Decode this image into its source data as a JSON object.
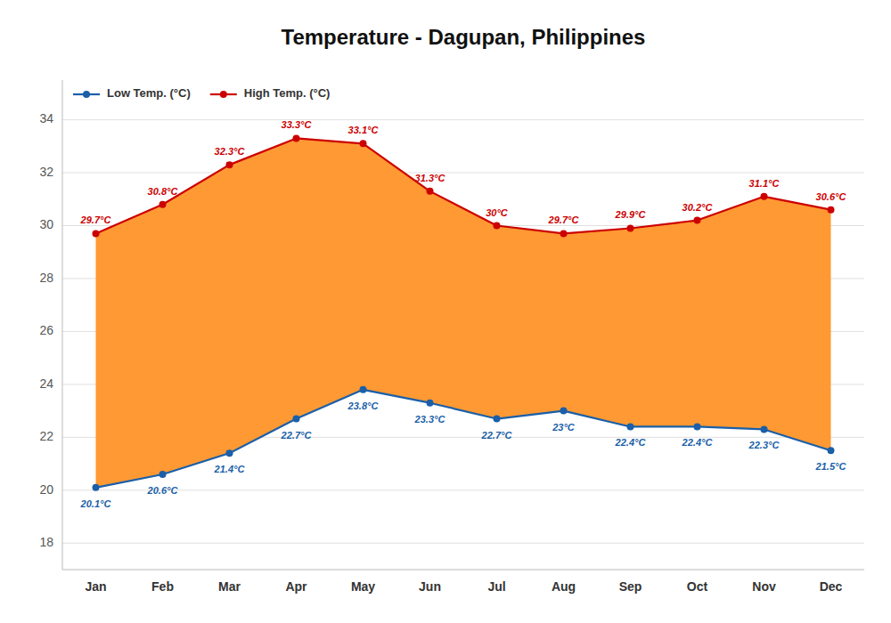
{
  "chart_data": {
    "type": "line",
    "title": "Temperature - Dagupan, Philippines",
    "categories": [
      "Jan",
      "Feb",
      "Mar",
      "Apr",
      "May",
      "Jun",
      "Jul",
      "Aug",
      "Sep",
      "Oct",
      "Nov",
      "Dec"
    ],
    "series": [
      {
        "name": "Low Temp. (°C)",
        "color": "#1a5fa8",
        "marker": "circle",
        "values": [
          20.1,
          20.6,
          21.4,
          22.7,
          23.8,
          23.3,
          22.7,
          23.0,
          22.4,
          22.4,
          22.3,
          21.5
        ],
        "value_labels": [
          "20.1°C",
          "20.6°C",
          "21.4°C",
          "22.7°C",
          "23.8°C",
          "23.3°C",
          "22.7°C",
          "23°C",
          "22.4°C",
          "22.4°C",
          "22.3°C",
          "21.5°C"
        ]
      },
      {
        "name": "High Temp. (°C)",
        "color": "#cc0000",
        "marker": "circle",
        "values": [
          29.7,
          30.8,
          32.3,
          33.3,
          33.1,
          31.3,
          30.0,
          29.7,
          29.9,
          30.2,
          31.1,
          30.6
        ],
        "value_labels": [
          "29.7°C",
          "30.8°C",
          "32.3°C",
          "33.3°C",
          "33.1°C",
          "31.3°C",
          "30°C",
          "29.7°C",
          "29.9°C",
          "30.2°C",
          "31.1°C",
          "30.6°C"
        ]
      }
    ],
    "color": "#ff9933",
    "ylim": [
      17.0,
      35.5
    ],
    "yticks": [
      18,
      20,
      22,
      24,
      26,
      28,
      30,
      32,
      34
    ],
    "grid": true,
    "legend": "upper left",
    "data_labels": true
  }
}
